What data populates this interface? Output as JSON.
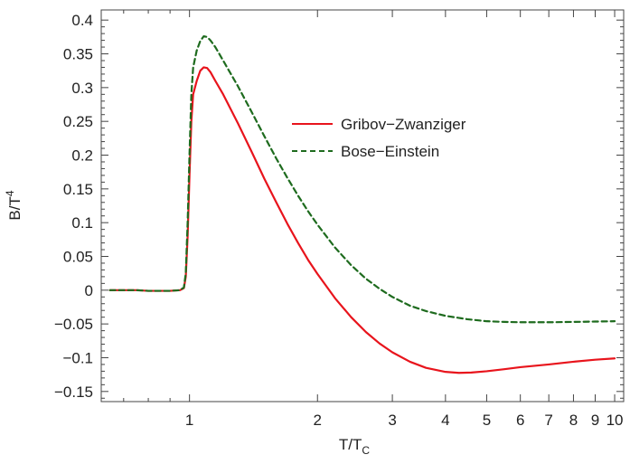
{
  "chart_data": {
    "type": "line",
    "title": "",
    "xlabel": {
      "main": "T/T",
      "sub": "C"
    },
    "ylabel": {
      "main": "B/T",
      "sup": "4"
    },
    "x_scale": "log",
    "xlim": [
      0.62,
      10.5
    ],
    "ylim": [
      -0.165,
      0.415
    ],
    "x_ticks": [
      {
        "value": 1,
        "label": "1"
      },
      {
        "value": 2,
        "label": "2"
      },
      {
        "value": 3,
        "label": "3"
      },
      {
        "value": 4,
        "label": "4"
      },
      {
        "value": 5,
        "label": "5"
      },
      {
        "value": 6,
        "label": "6"
      },
      {
        "value": 7,
        "label": "7"
      },
      {
        "value": 8,
        "label": "8"
      },
      {
        "value": 9,
        "label": "9"
      },
      {
        "value": 10,
        "label": "10"
      }
    ],
    "y_ticks": [
      {
        "value": 0.4,
        "label": "0.4"
      },
      {
        "value": 0.35,
        "label": "0.35"
      },
      {
        "value": 0.3,
        "label": "0.3"
      },
      {
        "value": 0.25,
        "label": "0.25"
      },
      {
        "value": 0.2,
        "label": "0.2"
      },
      {
        "value": 0.15,
        "label": "0.15"
      },
      {
        "value": 0.1,
        "label": "0.1"
      },
      {
        "value": 0.05,
        "label": "0.05"
      },
      {
        "value": 0,
        "label": "0"
      },
      {
        "value": -0.05,
        "label": "−0.05"
      },
      {
        "value": -0.1,
        "label": "−0.1"
      },
      {
        "value": -0.15,
        "label": "−0.15"
      }
    ],
    "grid": false,
    "legend_position": "upper-right",
    "series": [
      {
        "name": "Gribov−Zwanziger",
        "color": "#e8141c",
        "dash": "solid",
        "points": [
          [
            0.65,
            0.0
          ],
          [
            0.7,
            0.0
          ],
          [
            0.75,
            0.0
          ],
          [
            0.8,
            -0.001
          ],
          [
            0.85,
            -0.001
          ],
          [
            0.9,
            -0.001
          ],
          [
            0.95,
            0.0
          ],
          [
            0.97,
            0.003
          ],
          [
            0.98,
            0.02
          ],
          [
            0.99,
            0.08
          ],
          [
            1.0,
            0.17
          ],
          [
            1.01,
            0.25
          ],
          [
            1.02,
            0.29
          ],
          [
            1.04,
            0.31
          ],
          [
            1.06,
            0.325
          ],
          [
            1.08,
            0.33
          ],
          [
            1.1,
            0.329
          ],
          [
            1.12,
            0.323
          ],
          [
            1.15,
            0.31
          ],
          [
            1.2,
            0.29
          ],
          [
            1.3,
            0.247
          ],
          [
            1.4,
            0.205
          ],
          [
            1.5,
            0.165
          ],
          [
            1.6,
            0.13
          ],
          [
            1.7,
            0.098
          ],
          [
            1.8,
            0.07
          ],
          [
            1.9,
            0.045
          ],
          [
            2.0,
            0.024
          ],
          [
            2.2,
            -0.012
          ],
          [
            2.4,
            -0.04
          ],
          [
            2.6,
            -0.062
          ],
          [
            2.8,
            -0.079
          ],
          [
            3.0,
            -0.092
          ],
          [
            3.3,
            -0.106
          ],
          [
            3.6,
            -0.115
          ],
          [
            4.0,
            -0.121
          ],
          [
            4.3,
            -0.1225
          ],
          [
            4.6,
            -0.122
          ],
          [
            5.0,
            -0.12
          ],
          [
            5.5,
            -0.117
          ],
          [
            6.0,
            -0.114
          ],
          [
            7.0,
            -0.11
          ],
          [
            8.0,
            -0.106
          ],
          [
            9.0,
            -0.103
          ],
          [
            10.0,
            -0.101
          ]
        ]
      },
      {
        "name": "Bose−Einstein",
        "color": "#1e6b1e",
        "dash": "dashed",
        "points": [
          [
            0.65,
            0.0
          ],
          [
            0.7,
            0.0
          ],
          [
            0.75,
            0.0
          ],
          [
            0.8,
            -0.001
          ],
          [
            0.85,
            -0.001
          ],
          [
            0.9,
            -0.001
          ],
          [
            0.95,
            0.0
          ],
          [
            0.97,
            0.004
          ],
          [
            0.98,
            0.025
          ],
          [
            0.99,
            0.1
          ],
          [
            1.0,
            0.2
          ],
          [
            1.01,
            0.29
          ],
          [
            1.02,
            0.33
          ],
          [
            1.04,
            0.355
          ],
          [
            1.06,
            0.369
          ],
          [
            1.08,
            0.376
          ],
          [
            1.1,
            0.375
          ],
          [
            1.12,
            0.37
          ],
          [
            1.15,
            0.36
          ],
          [
            1.2,
            0.34
          ],
          [
            1.3,
            0.302
          ],
          [
            1.4,
            0.264
          ],
          [
            1.5,
            0.228
          ],
          [
            1.6,
            0.195
          ],
          [
            1.7,
            0.166
          ],
          [
            1.8,
            0.14
          ],
          [
            1.9,
            0.117
          ],
          [
            2.0,
            0.097
          ],
          [
            2.2,
            0.063
          ],
          [
            2.4,
            0.037
          ],
          [
            2.6,
            0.017
          ],
          [
            2.8,
            0.002
          ],
          [
            3.0,
            -0.01
          ],
          [
            3.3,
            -0.023
          ],
          [
            3.6,
            -0.031
          ],
          [
            4.0,
            -0.038
          ],
          [
            4.5,
            -0.043
          ],
          [
            5.0,
            -0.046
          ],
          [
            5.5,
            -0.047
          ],
          [
            6.0,
            -0.0475
          ],
          [
            7.0,
            -0.0475
          ],
          [
            8.0,
            -0.047
          ],
          [
            9.0,
            -0.0465
          ],
          [
            10.0,
            -0.046
          ]
        ]
      }
    ]
  }
}
